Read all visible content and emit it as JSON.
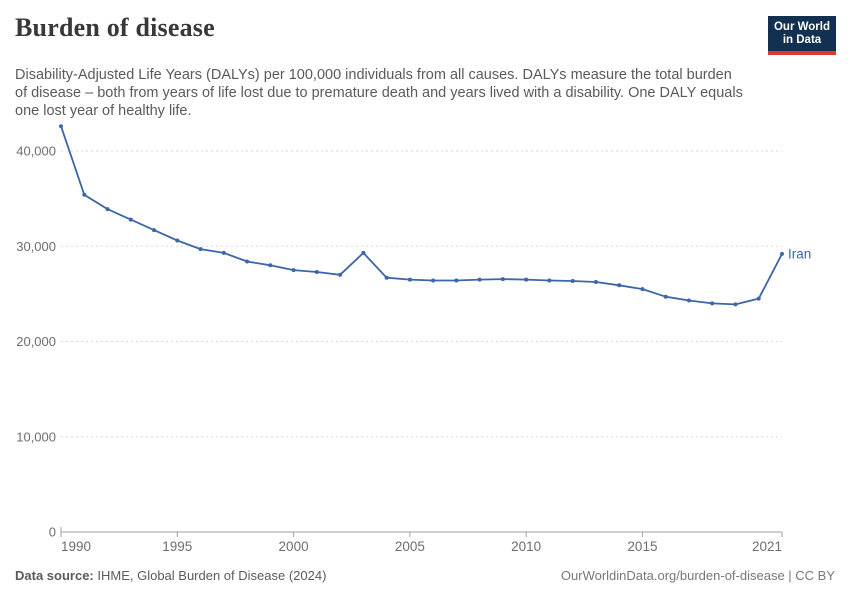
{
  "header": {
    "title": "Burden of disease",
    "subtitle": "Disability-Adjusted Life Years (DALYs) per 100,000 individuals from all causes. DALYs measure the total burden of disease – both from years of life lost due to premature death and years lived with a disability. One DALY equals one lost year of healthy life.",
    "logo": {
      "line1": "Our World",
      "line2": "in Data",
      "bg_color": "#12304f",
      "bar_color": "#dc3a2e"
    }
  },
  "chart_data": {
    "type": "line",
    "title": "Burden of disease",
    "xlabel": "",
    "ylabel": "DALYs per 100,000 individuals",
    "x": [
      1990,
      1991,
      1992,
      1993,
      1994,
      1995,
      1996,
      1997,
      1998,
      1999,
      2000,
      2001,
      2002,
      2003,
      2004,
      2005,
      2006,
      2007,
      2008,
      2009,
      2010,
      2011,
      2012,
      2013,
      2014,
      2015,
      2016,
      2017,
      2018,
      2019,
      2020,
      2021
    ],
    "series": [
      {
        "name": "Iran",
        "color": "#3c66a9",
        "values": [
          42600,
          35400,
          33900,
          32800,
          31700,
          30600,
          29700,
          29300,
          28400,
          28000,
          27500,
          27300,
          27000,
          29300,
          26700,
          26500,
          26400,
          26400,
          26500,
          26550,
          26500,
          26400,
          26350,
          26250,
          25900,
          25500,
          24700,
          24300,
          24000,
          23900,
          24500,
          29200
        ]
      }
    ],
    "x_tick_years": [
      1990,
      1995,
      2000,
      2005,
      2010,
      2015,
      2021
    ],
    "x_tick_labels": [
      "1990",
      "1995",
      "2000",
      "2005",
      "2010",
      "2015",
      "2021"
    ],
    "y_ticks": [
      0,
      10000,
      20000,
      30000,
      40000
    ],
    "y_tick_labels": [
      "0",
      "10,000",
      "20,000",
      "30,000",
      "40,000"
    ],
    "xlim": [
      1990,
      2021
    ],
    "ylim": [
      0,
      43200
    ],
    "grid": "horizontal-dashed",
    "legend_position": "end-of-line-label",
    "colors": {
      "grid": "#d9d9d9",
      "axis": "#a1a1a1",
      "tick_label": "#6e6e6e"
    }
  },
  "footer": {
    "source_label": "Data source:",
    "source_text": " IHME, Global Burden of Disease (2024)",
    "credit": "OurWorldinData.org/burden-of-disease | CC BY"
  }
}
